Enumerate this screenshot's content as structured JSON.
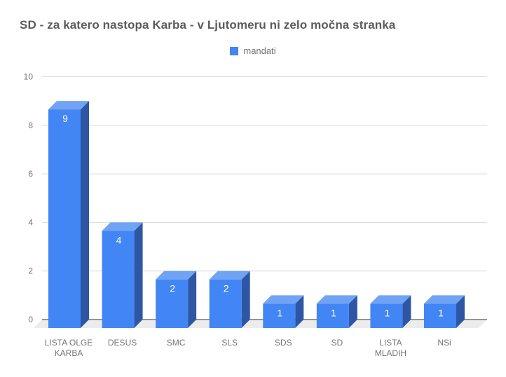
{
  "chart": {
    "title": "SD - za katero nastopa Karba - v Ljutomeru ni zelo močna stranka",
    "legend": {
      "label": "mandati",
      "swatch_color": "#4285f4"
    }
  },
  "chart_data": {
    "type": "bar",
    "style": "3d-column",
    "title": "SD - za katero nastopa Karba - v Ljutomeru ni zelo močna stranka",
    "categories": [
      "LISTA OLGE KARBA",
      "DESUS",
      "SMC",
      "SLS",
      "SDS",
      "SD",
      "LISTA MLADIH",
      "NSi"
    ],
    "categories_wrapped": [
      [
        "LISTA OLGE",
        "KARBA"
      ],
      [
        "DESUS"
      ],
      [
        "SMC"
      ],
      [
        "SLS"
      ],
      [
        "SDS"
      ],
      [
        "SD"
      ],
      [
        "LISTA",
        "MLADIH"
      ],
      [
        "NSi"
      ]
    ],
    "series": [
      {
        "name": "mandati",
        "values": [
          9,
          4,
          2,
          2,
          1,
          1,
          1,
          1
        ]
      }
    ],
    "value_labels": [
      "9",
      "4",
      "2",
      "2",
      "1",
      "1",
      "1",
      "1"
    ],
    "xlabel": "",
    "ylabel": "",
    "ylim": [
      0,
      10
    ],
    "y_ticks": [
      0,
      2,
      4,
      6,
      8,
      10
    ],
    "grid": true,
    "legend_position": "top-center",
    "colors": {
      "bar_front": "#4285f4",
      "bar_top": "#71a3f5",
      "bar_side": "#2e56a4",
      "grid_line": "#d9d9d9",
      "axis_line": "#333333",
      "floor": "#ececec",
      "tick_label": "#757575",
      "category_label": "#757575",
      "value_label": "#ffffff",
      "title": "#5c5c5c",
      "legend_label": "#757575"
    }
  }
}
